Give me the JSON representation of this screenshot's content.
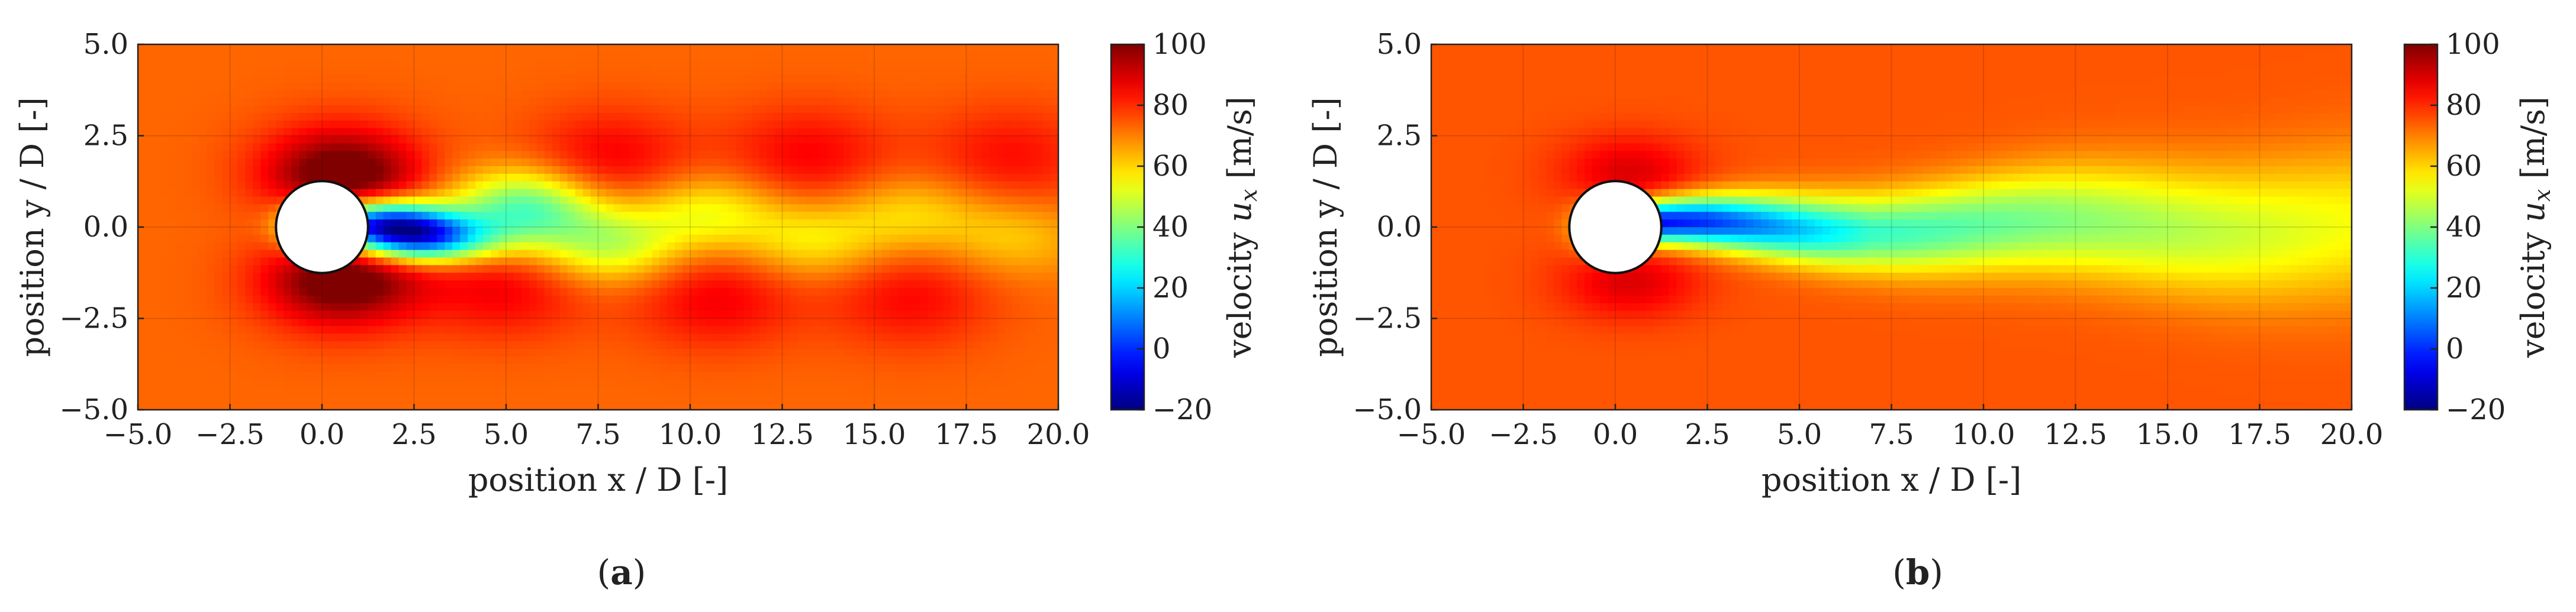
{
  "chart_data": [
    {
      "type": "heatmap",
      "panel": "a",
      "caption_letter": "a",
      "title": "",
      "xlabel": "position x / D [-]",
      "ylabel": "position y / D [-]",
      "xlim": [
        -5.0,
        20.0
      ],
      "ylim": [
        -5.0,
        5.0
      ],
      "xticks": [
        "-5.0",
        "-2.5",
        "0.0",
        "2.5",
        "5.0",
        "7.5",
        "10.0",
        "12.5",
        "15.0",
        "17.5",
        "20.0"
      ],
      "yticks": [
        "-5.0",
        "-2.5",
        "0.0",
        "2.5",
        "5.0"
      ],
      "grid": true,
      "colorbar": {
        "label": "velocity",
        "symbol": "u",
        "subscript": "x",
        "unit": "[m/s]",
        "range": [
          -20,
          100
        ],
        "ticks": [
          "-20",
          "0",
          "20",
          "40",
          "60",
          "80",
          "100"
        ],
        "colormap": "jet"
      },
      "cylinder": {
        "x": 0.0,
        "y": 0.0,
        "diameter": 1.0
      },
      "flow": "instantaneous vortex shedding (von Karman street)",
      "freestream_value": 73,
      "features": [
        {
          "kind": "wake-core",
          "x": 1.6,
          "y": 0.1,
          "value": -5
        },
        {
          "kind": "wake-core",
          "x": 2.8,
          "y": -0.35,
          "value": 10
        },
        {
          "kind": "wake-vortex",
          "x": 5.5,
          "y": 0.5,
          "value": 30
        },
        {
          "kind": "wake-vortex",
          "x": 7.8,
          "y": -0.5,
          "value": 45
        },
        {
          "kind": "wake-vortex",
          "x": 10.5,
          "y": 0.4,
          "value": 52
        },
        {
          "kind": "wake-vortex",
          "x": 13.3,
          "y": -0.4,
          "value": 55
        },
        {
          "kind": "wake-vortex",
          "x": 16.0,
          "y": 0.35,
          "value": 58
        },
        {
          "kind": "wake-vortex",
          "x": 18.8,
          "y": -0.3,
          "value": 60
        },
        {
          "kind": "high-speed",
          "x": 0.5,
          "y": 1.6,
          "value": 92
        },
        {
          "kind": "high-speed",
          "x": 0.5,
          "y": -1.6,
          "value": 92
        },
        {
          "kind": "high-speed",
          "x": 5.0,
          "y": -1.6,
          "value": 88
        },
        {
          "kind": "high-speed",
          "x": 7.8,
          "y": 1.8,
          "value": 88
        },
        {
          "kind": "high-speed",
          "x": 10.7,
          "y": -1.9,
          "value": 88
        },
        {
          "kind": "high-speed",
          "x": 13.2,
          "y": 1.9,
          "value": 87
        },
        {
          "kind": "high-speed",
          "x": 16.0,
          "y": -1.9,
          "value": 86
        },
        {
          "kind": "high-speed",
          "x": 18.7,
          "y": 1.9,
          "value": 85
        }
      ]
    },
    {
      "type": "heatmap",
      "panel": "b",
      "caption_letter": "b",
      "title": "",
      "xlabel": "position x / D [-]",
      "ylabel": "position y / D [-]",
      "xlim": [
        -5.0,
        20.0
      ],
      "ylim": [
        -5.0,
        5.0
      ],
      "xticks": [
        "-5.0",
        "-2.5",
        "0.0",
        "2.5",
        "5.0",
        "7.5",
        "10.0",
        "12.5",
        "15.0",
        "17.5",
        "20.0"
      ],
      "yticks": [
        "-5.0",
        "-2.5",
        "0.0",
        "2.5",
        "5.0"
      ],
      "grid": true,
      "colorbar": {
        "label": "velocity",
        "symbol": "u",
        "subscript": "x",
        "unit": "[m/s]",
        "range": [
          -20,
          100
        ],
        "ticks": [
          "-20",
          "0",
          "20",
          "40",
          "60",
          "80",
          "100"
        ],
        "colormap": "jet"
      },
      "cylinder": {
        "x": 0.0,
        "y": 0.0,
        "diameter": 1.0
      },
      "flow": "smoothed / averaged wake",
      "freestream_value": 75,
      "features": [
        {
          "kind": "wake-core",
          "x": 1.6,
          "y": 0.0,
          "value": -12
        },
        {
          "kind": "wake",
          "x": 5.0,
          "y": 0.15,
          "value": 30
        },
        {
          "kind": "wake",
          "x": 10.0,
          "y": 0.0,
          "value": 45
        },
        {
          "kind": "wake",
          "x": 20.0,
          "y": 0.0,
          "value": 55
        },
        {
          "kind": "high-speed",
          "x": 0.3,
          "y": 1.6,
          "value": 88
        },
        {
          "kind": "high-speed",
          "x": 0.3,
          "y": -1.6,
          "value": 88
        }
      ]
    }
  ]
}
